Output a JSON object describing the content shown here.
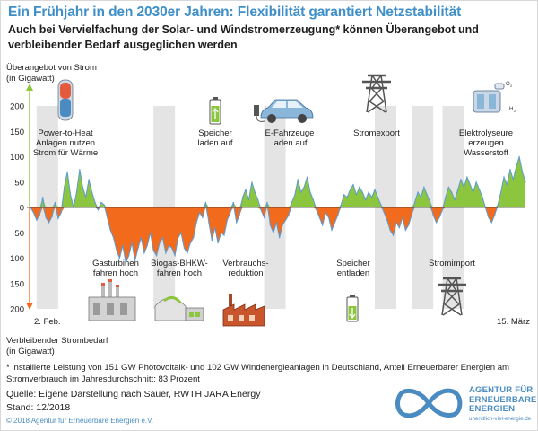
{
  "header": {
    "title": "Ein Frühjahr in den 2030er Jahren: Flexibilität garantiert Netzstabilität",
    "subtitle": "Auch bei Vervielfachung der Solar- und Windstromerzeugung* können Überangebot und verbleibender Bedarf ausgeglichen werden"
  },
  "axes": {
    "top_label": [
      "Überangebot von Strom",
      "(in Gigawatt)"
    ],
    "bottom_label": [
      "Verbleibender Strombedarf",
      "(in Gigawatt)"
    ],
    "start_label": "2. Feb.",
    "end_label": "15. März"
  },
  "annotations": {
    "top": [
      {
        "id": "power-to-heat",
        "lines": [
          "Power-to-Heat",
          "Anlagen nutzen",
          "Strom für Wärme"
        ],
        "icon": "heat-tank-icon"
      },
      {
        "id": "speicher-laden",
        "lines": [
          "Speicher",
          "laden auf"
        ],
        "icon": "battery-charging-icon"
      },
      {
        "id": "e-fahrzeuge",
        "lines": [
          "E-Fahrzeuge",
          "laden auf"
        ],
        "icon": "electric-car-icon"
      },
      {
        "id": "stromexport",
        "lines": [
          "Stromexport"
        ],
        "icon": "pylon-icon"
      },
      {
        "id": "elektrolyseure",
        "lines": [
          "Elektrolyseure",
          "erzeugen",
          "Wasserstoff"
        ],
        "icon": "electrolyser-icon",
        "icon_labels": [
          "O",
          "2",
          "H",
          "2"
        ]
      }
    ],
    "bottom": [
      {
        "id": "gasturbinen",
        "lines": [
          "Gasturbinen",
          "fahren hoch"
        ],
        "icon": "gas-turbine-plant-icon"
      },
      {
        "id": "biogas",
        "lines": [
          "Biogas-BHKW-",
          "fahren hoch"
        ],
        "icon": "biogas-plant-icon"
      },
      {
        "id": "verbrauchsreduktion",
        "lines": [
          "Verbrauchs-",
          "reduktion"
        ],
        "icon": "factory-icon"
      },
      {
        "id": "speicher-entladen",
        "lines": [
          "Speicher",
          "entladen"
        ],
        "icon": "battery-discharging-icon"
      },
      {
        "id": "stromimport",
        "lines": [
          "Stromimport"
        ],
        "icon": "pylon-icon"
      }
    ]
  },
  "footer": {
    "footnote": "* installierte Leistung von 151 GW Photovoltaik- und 102 GW Windenergieanlagen in Deutschland, Anteil Erneuerbarer Energien am Stromverbrauch im Jahresdurchschnitt: 83 Prozent",
    "source": "Quelle: Eigene Darstellung nach Sauer, RWTH JARA Energy",
    "date": "Stand: 12/2018",
    "copyright": "© 2018 Agentur für Erneuerbare Energien e.V.",
    "logo_lines": [
      "AGENTUR FÜR",
      "ERNEUERBARE",
      "ENERGIEN"
    ],
    "logo_url": "unendlich-viel-energie.de"
  },
  "colors": {
    "surplus": "#8cc63f",
    "deficit": "#f26b1d",
    "line": "#5b9bd5",
    "arrow_up": "#8cc63f",
    "arrow_down": "#f26b1d",
    "band": "#e4e4e4",
    "title": "#3f8fc9",
    "icon_blue": "#4a8cc2"
  },
  "chart_data": {
    "type": "area",
    "y_ticks": [
      200,
      150,
      100,
      50,
      0,
      50,
      100,
      150,
      200
    ],
    "ylim": [
      -200,
      200
    ],
    "x_range": [
      "2. Feb.",
      "15. März"
    ],
    "series": [
      {
        "values": [
          0,
          -10,
          -25,
          -15,
          20,
          -20,
          -30,
          -18,
          10,
          -22,
          -10,
          40,
          70,
          25,
          0,
          30,
          75,
          40,
          20,
          55,
          30,
          10,
          -5,
          10,
          5,
          -20,
          -45,
          -60,
          -85,
          -100,
          -75,
          -110,
          -95,
          -70,
          -105,
          -80,
          -60,
          -90,
          -75,
          -50,
          -85,
          -95,
          -70,
          -60,
          -90,
          -75,
          -80,
          -95,
          -60,
          -50,
          -80,
          -90,
          -70,
          -60,
          -30,
          -10,
          -20,
          10,
          -30,
          -65,
          -40,
          -70,
          -50,
          -55,
          -25,
          -10,
          10,
          -30,
          -15,
          20,
          35,
          15,
          50,
          30,
          15,
          -5,
          -20,
          10,
          -35,
          -50,
          -30,
          -60,
          -35,
          -25,
          -15,
          10,
          25,
          55,
          30,
          40,
          60,
          30,
          15,
          -5,
          -20,
          -35,
          -10,
          -20,
          -45,
          -30,
          -15,
          5,
          25,
          20,
          35,
          45,
          25,
          40,
          30,
          15,
          30,
          20,
          35,
          20,
          5,
          -10,
          -25,
          -45,
          -55,
          -30,
          -40,
          -20,
          -45,
          -35,
          -15,
          10,
          30,
          20,
          40,
          25,
          10,
          -15,
          -30,
          -20,
          -5,
          20,
          40,
          30,
          15,
          35,
          55,
          40,
          60,
          45,
          30,
          50,
          35,
          20,
          0,
          -20,
          -30,
          -15,
          5,
          30,
          60,
          45,
          75,
          55,
          80,
          100,
          70,
          50
        ]
      }
    ]
  }
}
